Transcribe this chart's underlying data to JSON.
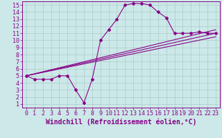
{
  "xlabel": "Windchill (Refroidissement éolien,°C)",
  "bg_color": "#cce8e8",
  "grid_color": "#aacccc",
  "line_color": "#880088",
  "xlim": [
    -0.5,
    23.5
  ],
  "ylim": [
    0.5,
    15.5
  ],
  "xticks": [
    0,
    1,
    2,
    3,
    4,
    5,
    6,
    7,
    8,
    9,
    10,
    11,
    12,
    13,
    14,
    15,
    16,
    17,
    18,
    19,
    20,
    21,
    22,
    23
  ],
  "yticks": [
    1,
    2,
    3,
    4,
    5,
    6,
    7,
    8,
    9,
    10,
    11,
    12,
    13,
    14,
    15
  ],
  "curve1_x": [
    0,
    1,
    2,
    3,
    4,
    5,
    6,
    7,
    8,
    9,
    10,
    11,
    12,
    13,
    14,
    15,
    16,
    17,
    18,
    19,
    20,
    21,
    22,
    23
  ],
  "curve1_y": [
    5,
    4.5,
    4.5,
    4.5,
    5,
    5,
    3,
    1.2,
    4.5,
    10,
    11.5,
    13,
    15,
    15.2,
    15.2,
    15,
    14,
    13.2,
    11,
    11,
    11,
    11.2,
    11,
    11
  ],
  "line1_x": [
    0,
    23
  ],
  "line1_y": [
    5,
    10.5
  ],
  "line2_x": [
    0,
    23
  ],
  "line2_y": [
    5,
    11.0
  ],
  "line3_x": [
    0,
    23
  ],
  "line3_y": [
    5,
    11.5
  ],
  "font_size_tick": 6,
  "font_size_xlabel": 7
}
